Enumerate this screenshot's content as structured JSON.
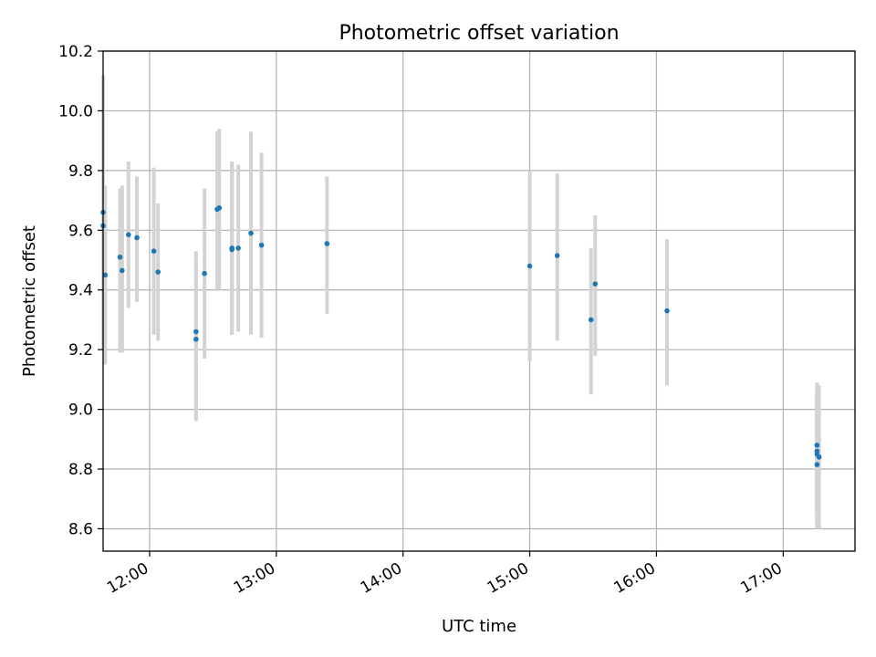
{
  "chart_data": {
    "type": "scatter",
    "title": "Photometric offset variation",
    "xlabel": "UTC time",
    "ylabel": "Photometric offset",
    "grid": true,
    "errorbar_color": "#d3d3d3",
    "marker_color": "#1f77b4",
    "x_ticks": [
      "12:00",
      "13:00",
      "14:00",
      "15:00",
      "16:00",
      "17:00"
    ],
    "y_ticks": [
      "8.6",
      "8.8",
      "9.0",
      "9.2",
      "9.4",
      "9.6",
      "9.8",
      "10.0",
      "10.2"
    ],
    "xlim": [
      "11:38",
      "17:34"
    ],
    "ylim": [
      8.525,
      10.2
    ],
    "points": [
      {
        "x": "11:38",
        "y": 9.66,
        "low": 9.2,
        "high": 10.12
      },
      {
        "x": "11:38",
        "y": 9.615,
        "low": 9.2,
        "high": 10.0
      },
      {
        "x": "11:39",
        "y": 9.45,
        "low": 9.15,
        "high": 9.75
      },
      {
        "x": "11:46",
        "y": 9.51,
        "low": 9.19,
        "high": 9.74
      },
      {
        "x": "11:47",
        "y": 9.465,
        "low": 9.19,
        "high": 9.75
      },
      {
        "x": "11:50",
        "y": 9.585,
        "low": 9.34,
        "high": 9.83
      },
      {
        "x": "11:54",
        "y": 9.575,
        "low": 9.36,
        "high": 9.78
      },
      {
        "x": "12:02",
        "y": 9.53,
        "low": 9.25,
        "high": 9.81
      },
      {
        "x": "12:04",
        "y": 9.46,
        "low": 9.23,
        "high": 9.69
      },
      {
        "x": "12:22",
        "y": 9.26,
        "low": 8.96,
        "high": 9.53
      },
      {
        "x": "12:22",
        "y": 9.235,
        "low": 8.97,
        "high": 9.5
      },
      {
        "x": "12:26",
        "y": 9.455,
        "low": 9.17,
        "high": 9.74
      },
      {
        "x": "12:32",
        "y": 9.67,
        "low": 9.4,
        "high": 9.93
      },
      {
        "x": "12:33",
        "y": 9.675,
        "low": 9.4,
        "high": 9.94
      },
      {
        "x": "12:39",
        "y": 9.54,
        "low": 9.25,
        "high": 9.83
      },
      {
        "x": "12:39",
        "y": 9.535,
        "low": 9.25,
        "high": 9.82
      },
      {
        "x": "12:42",
        "y": 9.54,
        "low": 9.26,
        "high": 9.82
      },
      {
        "x": "12:48",
        "y": 9.59,
        "low": 9.25,
        "high": 9.93
      },
      {
        "x": "12:53",
        "y": 9.55,
        "low": 9.24,
        "high": 9.86
      },
      {
        "x": "13:24",
        "y": 9.555,
        "low": 9.32,
        "high": 9.78
      },
      {
        "x": "15:00",
        "y": 9.48,
        "low": 9.16,
        "high": 9.8
      },
      {
        "x": "15:13",
        "y": 9.515,
        "low": 9.23,
        "high": 9.79
      },
      {
        "x": "15:29",
        "y": 9.3,
        "low": 9.05,
        "high": 9.54
      },
      {
        "x": "15:31",
        "y": 9.42,
        "low": 9.18,
        "high": 9.65
      },
      {
        "x": "16:05",
        "y": 9.33,
        "low": 9.08,
        "high": 9.57
      },
      {
        "x": "17:16",
        "y": 8.88,
        "low": 8.64,
        "high": 9.09
      },
      {
        "x": "17:16",
        "y": 8.86,
        "low": 8.62,
        "high": 9.06
      },
      {
        "x": "17:16",
        "y": 8.85,
        "low": 8.61,
        "high": 9.07
      },
      {
        "x": "17:16",
        "y": 8.815,
        "low": 8.6,
        "high": 9.05
      },
      {
        "x": "17:17",
        "y": 8.84,
        "low": 8.6,
        "high": 9.08
      }
    ]
  }
}
